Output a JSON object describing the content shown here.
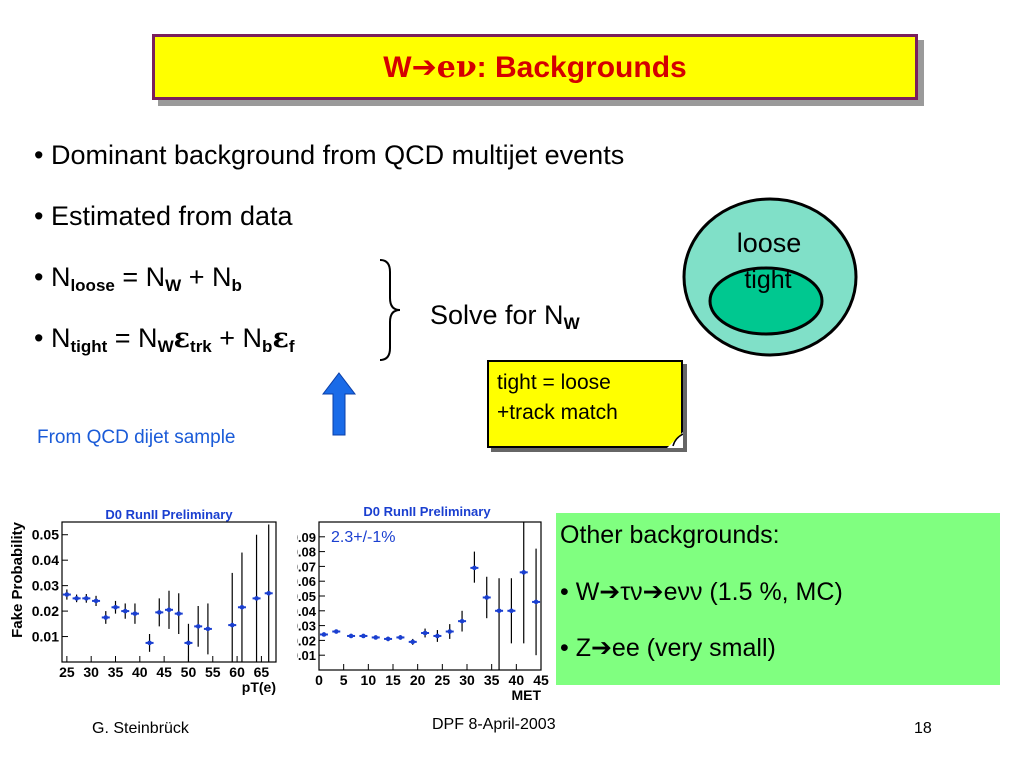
{
  "title": {
    "prefix": "W",
    "arrow": "➔",
    "nu": "eν",
    "rest": ": Backgrounds"
  },
  "bullets": {
    "b1": "• Dominant background from QCD multijet events",
    "b2": "• Estimated from data",
    "b3": {
      "p1": "• N",
      "s1": "loose",
      "p2": " = N",
      "s2": "W",
      "p3": " + N",
      "s3": "b"
    },
    "b4": {
      "p1": "• N",
      "s1": "tight",
      "p2": " = N",
      "s2": "W",
      "e1": "ε",
      "s3": "trk",
      "p3": " + N",
      "s4": "b",
      "e2": "ε",
      "s5": "f"
    }
  },
  "solve": {
    "text": "Solve for N",
    "sub": "W"
  },
  "venn": {
    "loose": "loose",
    "tight": "tight"
  },
  "note": {
    "line1": "tight = loose",
    "line2": "+track match"
  },
  "from_qcd": "From QCD dijet sample",
  "other": {
    "line1": "Other backgrounds:",
    "line2": "• W➔τν➔eνν (1.5 %, MC)",
    "line3": "• Z➔ee (very small)"
  },
  "footer": {
    "left": "G. Steinbrück",
    "center": "DPF 8-April-2003",
    "right": "18"
  },
  "colors": {
    "title_red": "#d40000",
    "title_bg": "#ffff00",
    "title_border": "#7a1f5c",
    "venn_outer": "#80e0c8",
    "venn_inner": "#00c890",
    "green_box": "#80ff80",
    "blue": "#1a5bd8"
  },
  "chart_data": [
    {
      "type": "scatter",
      "title": "D0 RunII Preliminary",
      "xlabel": "pT(e)",
      "ylabel": "Fake Probability",
      "xlim": [
        24,
        68
      ],
      "ylim": [
        0,
        0.055
      ],
      "xticks": [
        25,
        30,
        35,
        40,
        45,
        50,
        55,
        60,
        65
      ],
      "yticks": [
        0.01,
        0.02,
        0.03,
        0.04,
        0.05
      ],
      "ytick_labels": [
        "0.01",
        "0.02",
        "0.03",
        "0.04",
        "0.05"
      ],
      "points": [
        {
          "x": 25,
          "y": 0.0265,
          "lo": 0.0245,
          "hi": 0.0285
        },
        {
          "x": 27,
          "y": 0.025,
          "lo": 0.0235,
          "hi": 0.0265
        },
        {
          "x": 29,
          "y": 0.025,
          "lo": 0.0233,
          "hi": 0.0267
        },
        {
          "x": 31,
          "y": 0.024,
          "lo": 0.022,
          "hi": 0.026
        },
        {
          "x": 33,
          "y": 0.0175,
          "lo": 0.015,
          "hi": 0.02
        },
        {
          "x": 35,
          "y": 0.0215,
          "lo": 0.019,
          "hi": 0.024
        },
        {
          "x": 37,
          "y": 0.02,
          "lo": 0.017,
          "hi": 0.023
        },
        {
          "x": 39,
          "y": 0.019,
          "lo": 0.015,
          "hi": 0.023
        },
        {
          "x": 42,
          "y": 0.0075,
          "lo": 0.004,
          "hi": 0.011
        },
        {
          "x": 44,
          "y": 0.0195,
          "lo": 0.014,
          "hi": 0.025
        },
        {
          "x": 46,
          "y": 0.0205,
          "lo": 0.013,
          "hi": 0.028
        },
        {
          "x": 48,
          "y": 0.019,
          "lo": 0.011,
          "hi": 0.027
        },
        {
          "x": 50,
          "y": 0.0075,
          "lo": 0.0,
          "hi": 0.015
        },
        {
          "x": 52,
          "y": 0.014,
          "lo": 0.006,
          "hi": 0.022
        },
        {
          "x": 54,
          "y": 0.013,
          "lo": 0.003,
          "hi": 0.023
        },
        {
          "x": 59,
          "y": 0.0145,
          "lo": 0.0,
          "hi": 0.035
        },
        {
          "x": 61,
          "y": 0.0215,
          "lo": 0.0,
          "hi": 0.043
        },
        {
          "x": 64,
          "y": 0.025,
          "lo": 0.0,
          "hi": 0.05
        },
        {
          "x": 66.5,
          "y": 0.027,
          "lo": 0.0,
          "hi": 0.054
        }
      ]
    },
    {
      "type": "scatter",
      "title": "D0 RunII Preliminary",
      "annotation": "2.3+/-1%",
      "xlabel": "MET",
      "ylabel": "",
      "xlim": [
        0,
        45
      ],
      "ylim": [
        0,
        0.1
      ],
      "xticks": [
        0,
        5,
        10,
        15,
        20,
        25,
        30,
        35,
        40,
        45
      ],
      "yticks": [
        0.01,
        0.02,
        0.03,
        0.04,
        0.05,
        0.06,
        0.07,
        0.08,
        0.09
      ],
      "ytick_labels": [
        "0.01",
        "0.02",
        "0.03",
        "0.04",
        "0.05",
        "0.06",
        "0.07",
        "0.08",
        "0.09"
      ],
      "points": [
        {
          "x": 1,
          "y": 0.024,
          "lo": 0.023,
          "hi": 0.025
        },
        {
          "x": 3.5,
          "y": 0.026,
          "lo": 0.025,
          "hi": 0.027
        },
        {
          "x": 6.5,
          "y": 0.023,
          "lo": 0.022,
          "hi": 0.024
        },
        {
          "x": 9,
          "y": 0.023,
          "lo": 0.022,
          "hi": 0.024
        },
        {
          "x": 11.5,
          "y": 0.022,
          "lo": 0.021,
          "hi": 0.023
        },
        {
          "x": 14,
          "y": 0.021,
          "lo": 0.0195,
          "hi": 0.0225
        },
        {
          "x": 16.5,
          "y": 0.022,
          "lo": 0.0205,
          "hi": 0.0235
        },
        {
          "x": 19,
          "y": 0.019,
          "lo": 0.017,
          "hi": 0.021
        },
        {
          "x": 21.5,
          "y": 0.025,
          "lo": 0.022,
          "hi": 0.028
        },
        {
          "x": 24,
          "y": 0.023,
          "lo": 0.019,
          "hi": 0.027
        },
        {
          "x": 26.5,
          "y": 0.026,
          "lo": 0.021,
          "hi": 0.031
        },
        {
          "x": 29,
          "y": 0.033,
          "lo": 0.026,
          "hi": 0.04
        },
        {
          "x": 31.5,
          "y": 0.069,
          "lo": 0.059,
          "hi": 0.08
        },
        {
          "x": 34,
          "y": 0.049,
          "lo": 0.035,
          "hi": 0.063
        },
        {
          "x": 36.5,
          "y": 0.04,
          "lo": 0.0,
          "hi": 0.062
        },
        {
          "x": 39,
          "y": 0.04,
          "lo": 0.018,
          "hi": 0.062
        },
        {
          "x": 41.5,
          "y": 0.066,
          "lo": 0.018,
          "hi": 0.1
        },
        {
          "x": 44,
          "y": 0.046,
          "lo": 0.01,
          "hi": 0.082
        }
      ]
    }
  ]
}
